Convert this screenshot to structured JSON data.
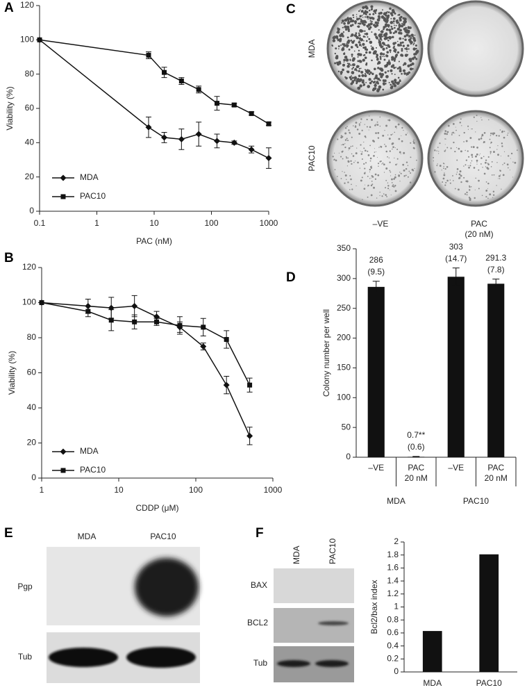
{
  "chart_data": [
    {
      "type": "line",
      "panel": "A",
      "x_label": "PAC (nM)",
      "y_label": "Viability (%)",
      "x": [
        0.1,
        8,
        15,
        30,
        60,
        125,
        250,
        500,
        1000
      ],
      "log_x": true,
      "xlim": [
        0.1,
        1000
      ],
      "xticks": [
        0.1,
        1,
        10,
        100,
        1000
      ],
      "ylim": [
        0,
        120
      ],
      "yticks": [
        0,
        20,
        40,
        60,
        80,
        100,
        120
      ],
      "legend": "lower left",
      "series": [
        {
          "name": "MDA",
          "color": "#111111",
          "marker": "diamond",
          "values": [
            100,
            49,
            43,
            42,
            45,
            41,
            40,
            36,
            31
          ],
          "errors": [
            0,
            6,
            3,
            6,
            7,
            4,
            1,
            2,
            6
          ]
        },
        {
          "name": "PAC10",
          "color": "#111111",
          "marker": "square",
          "values": [
            100,
            91,
            81,
            76,
            71,
            63,
            62,
            57,
            51
          ],
          "errors": [
            0,
            2,
            3,
            2,
            2,
            4,
            1,
            1,
            1
          ]
        }
      ]
    },
    {
      "type": "line",
      "panel": "B",
      "x_label": "CDDP (μM)",
      "y_label": "Viability (%)",
      "x": [
        1,
        4,
        8,
        16,
        31,
        62,
        125,
        250,
        500
      ],
      "log_x": true,
      "xlim": [
        1,
        1000
      ],
      "xticks": [
        1,
        10,
        100,
        1000
      ],
      "ylim": [
        0,
        120
      ],
      "yticks": [
        0,
        20,
        40,
        60,
        80,
        100,
        120
      ],
      "legend": "lower left",
      "series": [
        {
          "name": "MDA",
          "color": "#111111",
          "marker": "diamond",
          "values": [
            100,
            98,
            97,
            98,
            92,
            86,
            75,
            53,
            24
          ],
          "errors": [
            0,
            4,
            6,
            6,
            3,
            3,
            2,
            5,
            5
          ]
        },
        {
          "name": "PAC10",
          "color": "#111111",
          "marker": "square",
          "values": [
            100,
            95,
            90,
            89,
            89,
            87,
            86,
            79,
            53
          ],
          "errors": [
            0,
            3,
            6,
            4,
            2,
            5,
            5,
            5,
            4
          ]
        }
      ]
    },
    {
      "type": "bar",
      "panel": "D",
      "y_label": "Colony number per well",
      "categories": [
        "–VE",
        "PAC 20 nM",
        "–VE",
        "PAC 20 nM"
      ],
      "groups": [
        "MDA",
        "PAC10"
      ],
      "values": [
        286,
        0.7,
        303,
        291.3
      ],
      "value_labels": [
        "286",
        "0.7**",
        "303",
        "291.3"
      ],
      "errors": [
        9.5,
        0.6,
        14.7,
        7.8
      ],
      "error_labels": [
        "(9.5)",
        "(0.6)",
        "(14.7)",
        "(7.8)"
      ],
      "color": "#111111",
      "ylim": [
        0,
        350
      ],
      "yticks": [
        0,
        50,
        100,
        150,
        200,
        250,
        300,
        350
      ]
    },
    {
      "type": "bar",
      "y_label": "Bcl2/bax index",
      "categories": [
        "MDA",
        "PAC10"
      ],
      "values": [
        0.63,
        1.81
      ],
      "color": "#111111",
      "ylim": [
        0,
        2
      ],
      "yticks": [
        0,
        0.2,
        0.4,
        0.6,
        0.8,
        1,
        1.2,
        1.4,
        1.6,
        1.8,
        2
      ]
    }
  ],
  "panels": {
    "C": {
      "letter": "C",
      "rows": [
        "MDA",
        "PAC10"
      ],
      "columns": [
        "–VE",
        "PAC (20 nM)"
      ]
    },
    "E": {
      "letter": "E",
      "columns": [
        "MDA",
        "PAC10"
      ],
      "rows": [
        "Pgp",
        "Tub"
      ]
    },
    "F": {
      "letter": "F",
      "columns": [
        "MDA",
        "PAC10"
      ],
      "rows": [
        "BAX",
        "BCL2",
        "Tub"
      ]
    }
  }
}
